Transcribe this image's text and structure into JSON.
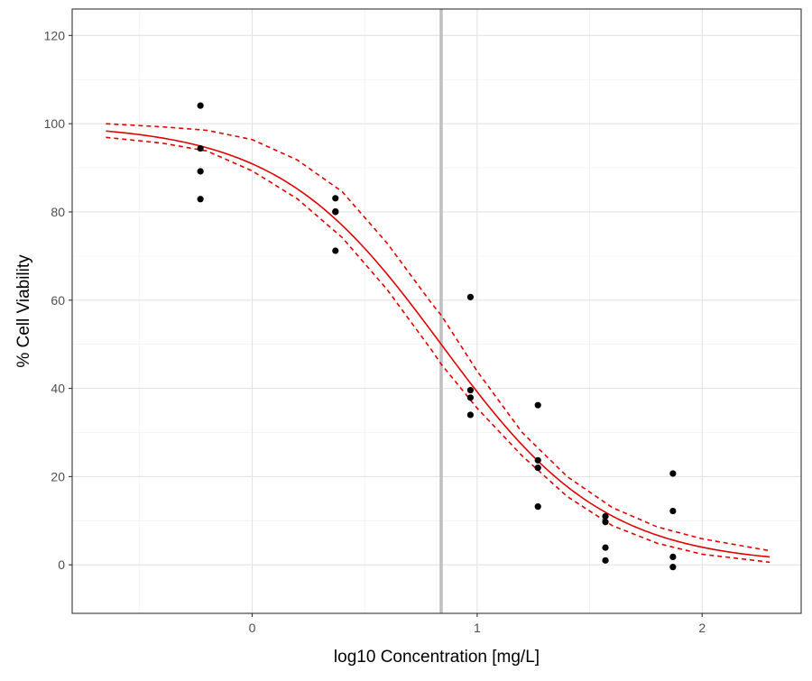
{
  "chart_data": {
    "type": "scatter",
    "title": "",
    "xlabel": "log10 Concentration [mg/L]",
    "ylabel": "% Cell Viability",
    "xlim": [
      -0.8,
      2.44
    ],
    "ylim": [
      -11,
      126
    ],
    "x_ticks": [
      0,
      1,
      2
    ],
    "x_tick_labels": [
      "0",
      "1",
      "2"
    ],
    "x_minor_gridlines": [
      -0.5,
      0.5,
      1.5
    ],
    "y_ticks": [
      0,
      20,
      40,
      60,
      80,
      100,
      120
    ],
    "y_tick_labels": [
      "0",
      "20",
      "40",
      "60",
      "80",
      "100",
      "120"
    ],
    "y_minor_gridlines": [
      10,
      30,
      50,
      70,
      90,
      110
    ],
    "grid": true,
    "legend": "none",
    "vertical_reference_line": {
      "x": 0.84,
      "color": "#bfbfbf"
    },
    "points": {
      "color": "#000000",
      "x": [
        -0.23,
        -0.23,
        -0.23,
        -0.23,
        0.37,
        0.37,
        0.37,
        0.37,
        0.97,
        0.97,
        0.97,
        0.97,
        1.27,
        1.27,
        1.27,
        1.27,
        1.57,
        1.57,
        1.57,
        1.57,
        1.87,
        1.87,
        1.87,
        1.87
      ],
      "y": [
        104.1,
        94.4,
        89.2,
        82.9,
        83.1,
        80.1,
        80.0,
        71.2,
        60.7,
        39.6,
        37.9,
        34.0,
        36.2,
        23.7,
        22.0,
        13.2,
        11.0,
        9.7,
        3.9,
        1.0,
        20.7,
        12.2,
        1.8,
        -0.5
      ]
    },
    "fit_curve": {
      "model": "four-parameter logistic",
      "top": 100,
      "bottom": 0,
      "log10_ec50": 0.84,
      "hill_slope": 1.19,
      "x_range": [
        -0.65,
        2.3
      ],
      "color": "#e00000",
      "style": "solid"
    },
    "confidence_bands": {
      "color": "#e00000",
      "style": "dashed",
      "upper": {
        "x": [
          -0.65,
          -0.4,
          -0.2,
          0.0,
          0.2,
          0.4,
          0.6,
          0.8,
          0.84,
          1.0,
          1.2,
          1.4,
          1.6,
          1.8,
          2.0,
          2.3
        ],
        "y": [
          100.0,
          99.3,
          98.5,
          96.4,
          91.8,
          84.6,
          72.9,
          59.1,
          56.6,
          43.9,
          30.0,
          20.0,
          13.0,
          8.6,
          5.9,
          3.2
        ]
      },
      "lower": {
        "x": [
          -0.65,
          -0.4,
          -0.2,
          0.0,
          0.2,
          0.4,
          0.6,
          0.8,
          0.84,
          1.0,
          1.2,
          1.4,
          1.6,
          1.8,
          2.0,
          2.3
        ],
        "y": [
          96.9,
          95.6,
          93.8,
          89.3,
          83.0,
          74.2,
          62.4,
          48.5,
          45.5,
          35.5,
          24.7,
          15.5,
          8.9,
          4.9,
          2.4,
          0.6
        ]
      }
    }
  }
}
